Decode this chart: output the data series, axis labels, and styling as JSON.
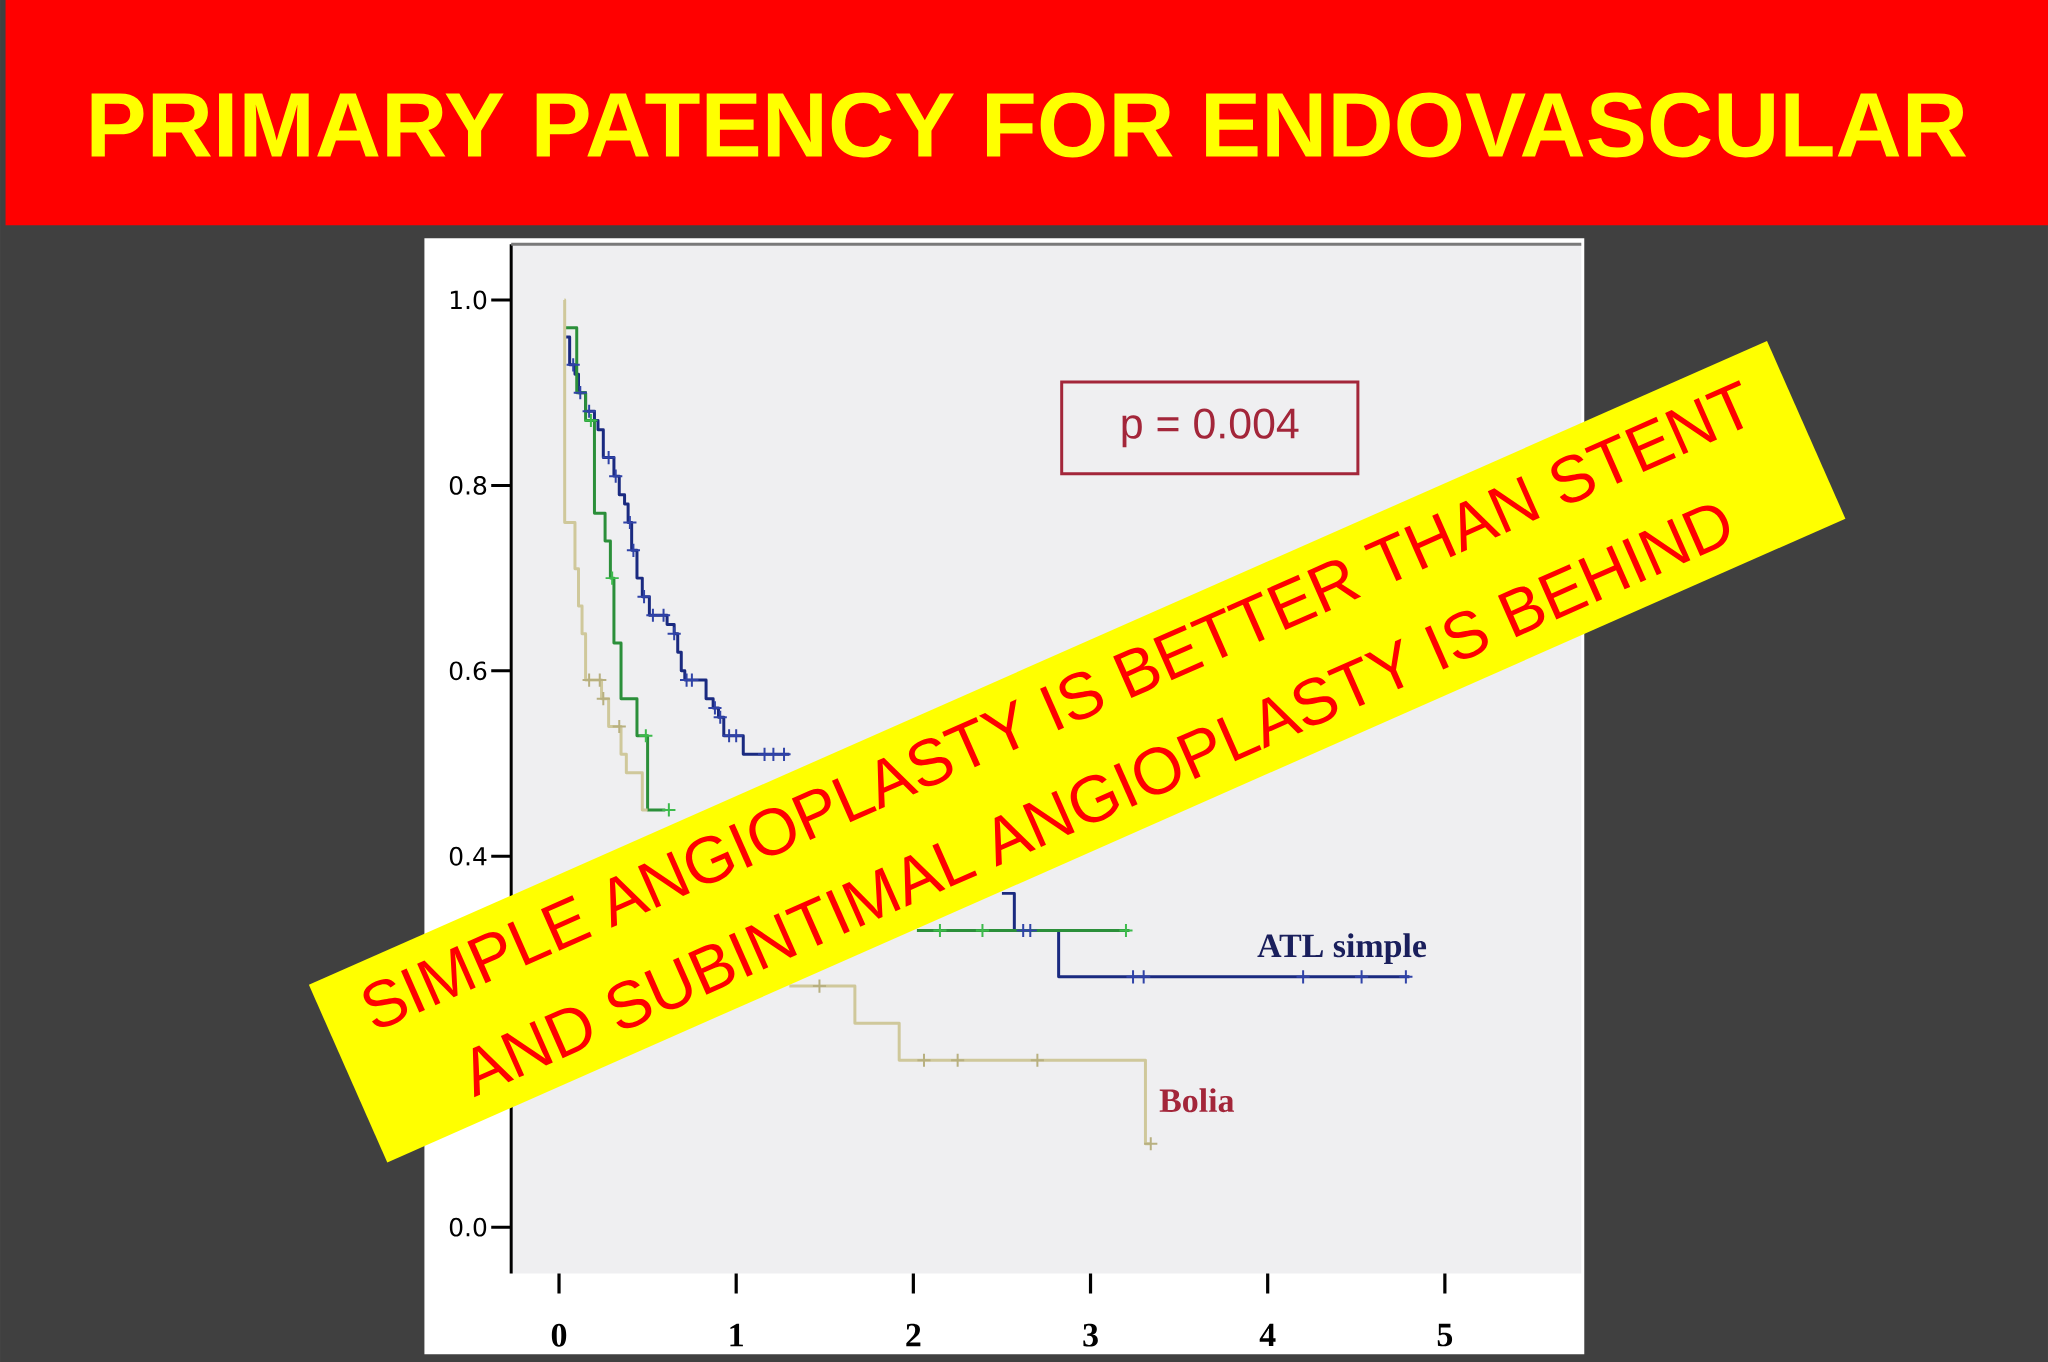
{
  "chart_data": {
    "type": "step",
    "title": "PRIMARY PATENCY FOR ENDOVASCULAR",
    "annotations": [
      "p = 0.004",
      "SIMPLE ANGIOPLASTY IS BETTER THAN STENT",
      "AND SUBINTIMAL ANGIOPLASTY IS BEHIND"
    ],
    "xlim": [
      -0.27,
      5.77
    ],
    "ylim": [
      -0.05,
      1.06
    ],
    "xticks": [
      0,
      1,
      2,
      3,
      4,
      5
    ],
    "yticks": [
      {
        "value": 0,
        "label": "0.0"
      },
      0.4,
      0.6,
      0.8,
      {
        "value": 1,
        "label": "1.0"
      }
    ],
    "series": [
      {
        "name": "ATL simple",
        "color": "#1a2a80",
        "x": [
          0.04,
          0.06,
          0.09,
          0.11,
          0.15,
          0.2,
          0.22,
          0.25,
          0.31,
          0.34,
          0.37,
          0.39,
          0.41,
          0.44,
          0.47,
          0.51,
          0.61,
          0.65,
          0.67,
          0.69,
          0.71,
          0.83,
          0.87,
          0.9,
          0.93,
          1.04,
          1.3,
          2.0,
          2.5,
          2.57,
          2.82,
          4.8
        ],
        "values": [
          0.96,
          0.93,
          0.92,
          0.9,
          0.88,
          0.87,
          0.86,
          0.83,
          0.81,
          0.79,
          0.78,
          0.76,
          0.73,
          0.7,
          0.68,
          0.66,
          0.65,
          0.64,
          0.62,
          0.6,
          0.59,
          0.57,
          0.56,
          0.55,
          0.53,
          0.51,
          0.51,
          null,
          0.36,
          0.32,
          0.27,
          0.27
        ]
      },
      {
        "color": "#2b8f3a",
        "x": [
          0.035,
          0.1,
          0.15,
          0.2,
          0.26,
          0.29,
          0.31,
          0.35,
          0.44,
          0.5,
          0.6,
          1.0,
          2.02,
          3.22
        ],
        "values": [
          0.97,
          0.9,
          0.87,
          0.77,
          0.74,
          0.7,
          0.63,
          0.57,
          0.53,
          0.45,
          0.45,
          null,
          0.32,
          0.32
        ]
      },
      {
        "name": "Bolia",
        "color": "#cfc89b",
        "x": [
          0.03,
          0.032,
          0.09,
          0.11,
          0.13,
          0.15,
          0.24,
          0.28,
          0.35,
          0.38,
          0.47,
          0.5,
          1.0,
          1.3,
          1.67,
          1.92,
          3.31,
          3.34
        ],
        "values": [
          1.0,
          0.76,
          0.71,
          0.67,
          0.64,
          0.59,
          0.57,
          0.54,
          0.51,
          0.49,
          0.45,
          0.45,
          null,
          0.26,
          0.22,
          0.18,
          0.09,
          0.09
        ]
      },
      {
        "type": "scatter",
        "marker": "cross",
        "color": "#3043a8",
        "x": [
          0.08,
          0.12,
          0.17,
          0.28,
          0.32,
          0.4,
          0.42,
          0.48,
          0.53,
          0.59,
          0.65,
          0.72,
          0.75,
          0.88,
          0.91,
          0.96,
          1.0,
          1.16,
          1.21,
          1.27,
          2.62,
          2.66,
          3.24,
          3.3,
          4.2,
          4.53,
          4.78
        ],
        "values": [
          0.93,
          0.9,
          0.88,
          0.83,
          0.81,
          0.76,
          0.73,
          0.68,
          0.66,
          0.66,
          0.64,
          0.59,
          0.59,
          0.56,
          0.55,
          0.53,
          0.53,
          0.51,
          0.51,
          0.51,
          0.32,
          0.32,
          0.27,
          0.27,
          0.27,
          0.27,
          0.27
        ]
      },
      {
        "type": "scatter",
        "marker": "cross",
        "color": "#3dbb4c",
        "x": [
          0.18,
          0.3,
          0.49,
          0.62,
          2.15,
          2.39,
          3.2
        ],
        "values": [
          0.87,
          0.7,
          0.53,
          0.45,
          0.32,
          0.32,
          0.32
        ]
      },
      {
        "type": "scatter",
        "marker": "cross",
        "color": "#b8b080",
        "x": [
          0.17,
          0.23,
          0.25,
          0.34,
          1.47,
          2.06,
          2.25,
          2.7,
          3.34
        ],
        "values": [
          0.59,
          0.59,
          0.57,
          0.54,
          0.26,
          0.18,
          0.18,
          0.18,
          0.09
        ]
      }
    ]
  }
}
